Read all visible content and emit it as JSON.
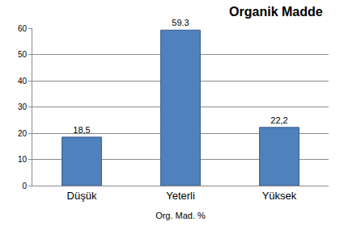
{
  "chart_data": {
    "type": "bar",
    "title": "Organik Madde",
    "x_label": "Org. Mad. %",
    "categories": [
      "Düşük",
      "Yeterli",
      "Yüksek"
    ],
    "values": [
      18.5,
      59.3,
      22.2
    ],
    "value_labels": [
      "18,5",
      "59.3",
      "22,2"
    ],
    "data_labels": true,
    "color": "#4f81bd",
    "ylim": [
      0,
      60
    ],
    "yticks": [
      0,
      10,
      20,
      30,
      40,
      50,
      60
    ],
    "grid": true
  }
}
